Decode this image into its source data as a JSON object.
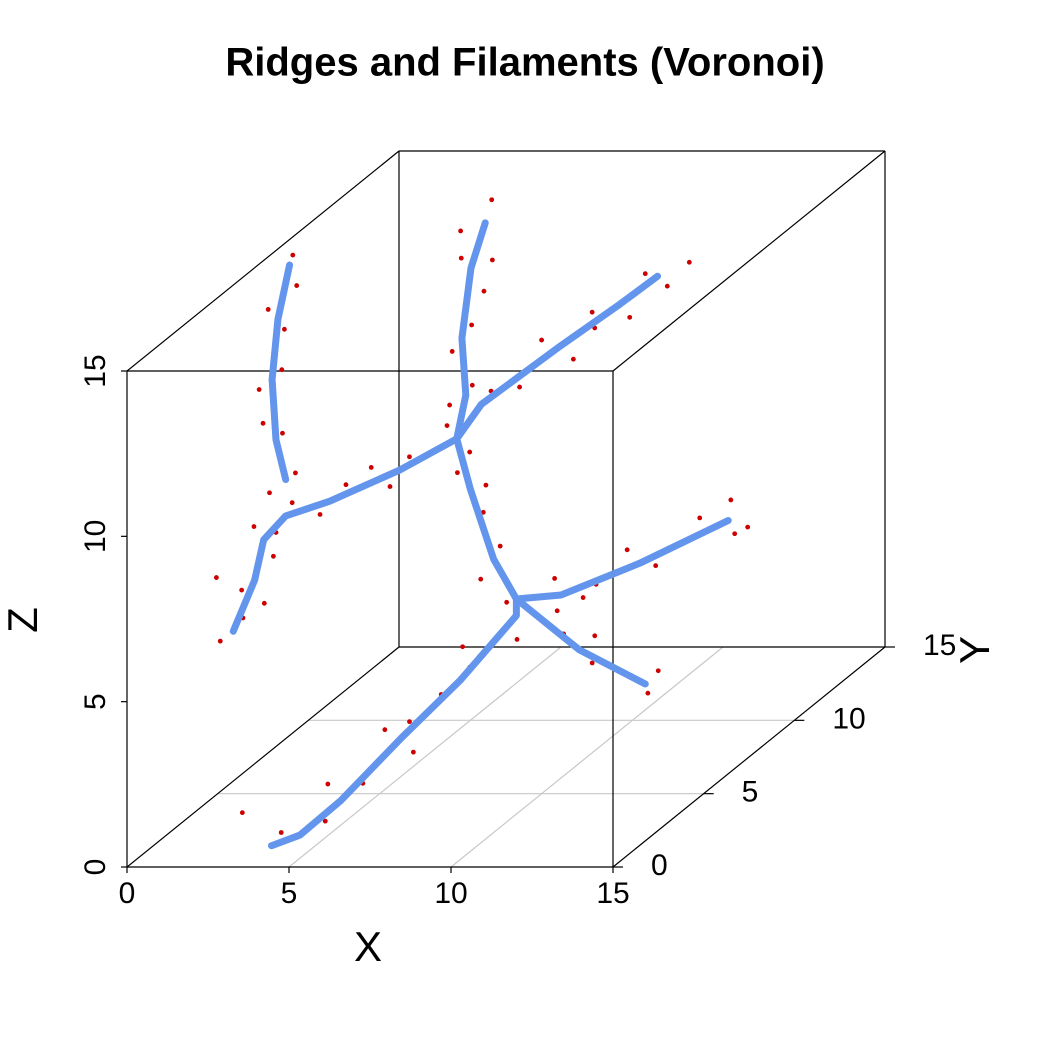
{
  "chart_data": {
    "type": "scatter3d",
    "title": "Ridges and Filaments (Voronoi)",
    "xlabel": "X",
    "ylabel": "Y",
    "zlabel": "Z",
    "xlim": [
      0,
      15
    ],
    "ylim": [
      0,
      15
    ],
    "zlim": [
      0,
      15
    ],
    "xticks": [
      0,
      5,
      10,
      15
    ],
    "yticks": [
      0,
      5,
      10,
      15
    ],
    "zticks": [
      0,
      5,
      10,
      15
    ],
    "grid": true,
    "point_color": "#cc0000",
    "line_color": "#6495ed",
    "points": {
      "x": [
        4.2,
        3.6,
        5.0,
        4.8,
        5.6,
        6.0,
        6.6,
        6.9,
        7.5,
        7.0,
        8.4,
        7.8,
        3.0,
        6.2,
        9.0,
        9.6,
        10.0,
        10.8,
        10.2,
        8.8,
        9.4,
        9.0,
        9.6,
        10.4,
        11.0,
        11.8,
        12.6,
        12.2,
        13.0,
        10.0,
        7.6,
        7.0,
        6.8,
        6.0,
        6.6,
        5.4,
        6.1,
        5.9,
        5.2,
        5.6,
        5.0,
        5.7,
        5.0,
        4.7,
        5.4,
        5.1,
        6.2,
        6.8,
        7.2,
        7.9,
        8.2,
        8.8,
        9.0,
        9.4,
        9.8,
        8.0,
        4.8,
        4.2,
        3.4,
        2.6,
        2.3,
        1.8,
        1.4,
        2.0,
        1.3,
        2.0,
        1.2,
        1.9,
        0.8,
        3.9,
        2.4,
        1.6,
        2.0,
        1.4,
        1.7,
        1.0,
        1.5,
        1.0,
        1.6,
        1.2
      ],
      "y": [
        1,
        1.5,
        2,
        2.5,
        3,
        3.5,
        4,
        5,
        5.5,
        6,
        6.5,
        7,
        1,
        4.5,
        8,
        8.5,
        9,
        10,
        10.5,
        8,
        9,
        7.5,
        8,
        9,
        9.5,
        10.5,
        11,
        11.5,
        11,
        8,
        7,
        7,
        7.5,
        7.5,
        8,
        8,
        8,
        8.5,
        8.5,
        9,
        9,
        9.5,
        9.5,
        10,
        10.5,
        11,
        9,
        9.5,
        10,
        10.5,
        11,
        12,
        12.5,
        13,
        13.5,
        11.5,
        7,
        7,
        6,
        6,
        5,
        5,
        4.5,
        4.5,
        4,
        4,
        3,
        3,
        3.5,
        6.5,
        5,
        5,
        5,
        5,
        5.5,
        5.5,
        6,
        6,
        6.5,
        7
      ],
      "z": [
        0.6,
        0,
        0.5,
        1.4,
        1.2,
        2.6,
        1.7,
        3.0,
        3.6,
        4.0,
        4.0,
        4.9,
        1.2,
        2.4,
        3.5,
        2.4,
        2.0,
        1.5,
        0.6,
        4.2,
        3.0,
        5.4,
        4.6,
        5.6,
        4.9,
        5.9,
        5.2,
        6.0,
        5.4,
        5.0,
        6.6,
        5.6,
        7.4,
        8.6,
        8.0,
        9.8,
        9.0,
        10.8,
        10.2,
        12.4,
        11.6,
        13.2,
        14.2,
        14.8,
        13.7,
        15.3,
        10.4,
        10.3,
        11.5,
        10.7,
        11.9,
        11.3,
        12.4,
        11.8,
        12.3,
        11.2,
        9.3,
        8.4,
        8.9,
        8.0,
        8.8,
        7.9,
        8.3,
        7.4,
        6.6,
        6.2,
        5.5,
        6.2,
        7.2,
        9.2,
        9.7,
        9.1,
        10.9,
        11.2,
        12.6,
        12.0,
        13.6,
        14.2,
        14.7,
        15.4
      ]
    },
    "filaments": [
      {
        "x": [
          3.9,
          4.5,
          5.2,
          6.2,
          7.2,
          8.1,
          8.1
        ],
        "y": [
          1,
          1.5,
          2.5,
          4,
          5.5,
          7,
          7
        ],
        "z": [
          0.2,
          0.3,
          0.9,
          2.1,
          3.2,
          4.5,
          5.0
        ]
      },
      {
        "x": [
          8.1,
          9.2,
          10.4
        ],
        "y": [
          7,
          8.5,
          10
        ],
        "z": [
          5.0,
          2.8,
          1.1
        ]
      },
      {
        "x": [
          8.1,
          9.2,
          10.8,
          12.4
        ],
        "y": [
          7,
          7.5,
          9,
          11
        ],
        "z": [
          5.0,
          4.9,
          5.2,
          5.6
        ]
      },
      {
        "x": [
          8.1,
          7.4,
          6.4,
          5.7
        ],
        "y": [
          7,
          7,
          7.5,
          8
        ],
        "z": [
          5.0,
          6.2,
          8.1,
          9.4
        ]
      },
      {
        "x": [
          5.7,
          5.7,
          5.3,
          5.3,
          4.9
        ],
        "y": [
          8,
          8.5,
          9,
          9.5,
          11
        ],
        "z": [
          9.4,
          10.5,
          12.0,
          13.9,
          14.6
        ]
      },
      {
        "x": [
          5.7,
          5.9,
          7.5,
          8.5,
          9.1
        ],
        "y": [
          8,
          9,
          10.5,
          12,
          13
        ],
        "z": [
          9.4,
          10.0,
          11.1,
          11.7,
          12.1
        ]
      },
      {
        "x": [
          5.7,
          4.5,
          2.9,
          2.1,
          1.7,
          1.7,
          1.6
        ],
        "y": [
          8,
          7,
          6,
          5,
          4.5,
          4,
          3
        ],
        "z": [
          9.4,
          8.9,
          8.4,
          8.4,
          7.9,
          6.9,
          5.8
        ]
      },
      {
        "x": [
          2.1,
          1.8,
          1.4,
          1.3,
          1.1
        ],
        "y": [
          5,
          5,
          5.5,
          6,
          7
        ],
        "z": [
          9.5,
          10.7,
          12.3,
          13.9,
          15.1
        ]
      }
    ]
  }
}
